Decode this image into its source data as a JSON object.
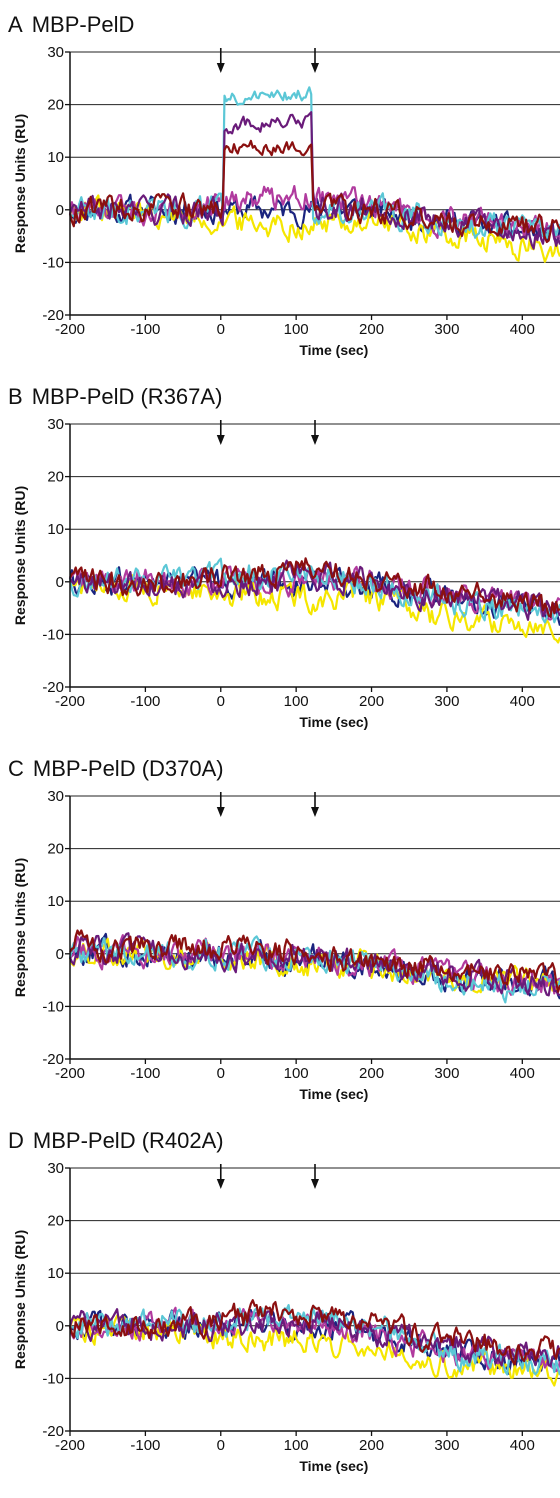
{
  "figure": {
    "panels": [
      {
        "letter": "A",
        "title": "MBP-PelD"
      },
      {
        "letter": "B",
        "title": "MBP-PelD (R367A)"
      },
      {
        "letter": "C",
        "title": "MBP-PelD (D370A)"
      },
      {
        "letter": "D",
        "title": "MBP-PelD (R402A)"
      }
    ]
  },
  "chart_data": [
    {
      "type": "line",
      "title": "MBP-PelD",
      "xlabel": "Time (sec)",
      "ylabel": "Response Units (RU)",
      "xlim": [
        -200,
        450
      ],
      "ylim": [
        -20,
        30
      ],
      "xticks": [
        -200,
        -100,
        0,
        100,
        200,
        300,
        400
      ],
      "yticks": [
        -20,
        -10,
        0,
        10,
        20,
        30
      ],
      "grid": "horizontal",
      "annotations": [
        {
          "type": "arrow",
          "x": 0
        },
        {
          "type": "arrow",
          "x": 125
        }
      ],
      "series": [
        {
          "color": "#1a237e",
          "x": [
            -200,
            -100,
            0,
            125,
            200,
            300,
            450
          ],
          "values": [
            0,
            0,
            0,
            0,
            0,
            -2,
            -5
          ]
        },
        {
          "color": "#f5e600",
          "x": [
            -200,
            -100,
            0,
            125,
            200,
            300,
            450
          ],
          "values": [
            0,
            0,
            -2,
            -3,
            -2,
            -5,
            -8
          ]
        },
        {
          "color": "#b03a9e",
          "x": [
            -200,
            -100,
            0,
            125,
            200,
            300,
            450
          ],
          "values": [
            0,
            0,
            2,
            3,
            1,
            -2,
            -4
          ]
        },
        {
          "color": "#5bc7d6",
          "x": [
            -200,
            -100,
            0,
            125,
            200,
            300,
            450
          ],
          "values": [
            0,
            0,
            21,
            22,
            0,
            -2,
            -5
          ]
        },
        {
          "color": "#6a1b7a",
          "x": [
            -200,
            -100,
            0,
            125,
            200,
            300,
            450
          ],
          "values": [
            0,
            0,
            16,
            17,
            0,
            -2,
            -5
          ]
        },
        {
          "color": "#8b1010",
          "x": [
            -200,
            -100,
            0,
            125,
            200,
            300,
            450
          ],
          "values": [
            0,
            0,
            12,
            12,
            0,
            -2,
            -4
          ]
        }
      ]
    },
    {
      "type": "line",
      "title": "MBP-PelD (R367A)",
      "xlabel": "Time (sec)",
      "ylabel": "Response Units (RU)",
      "xlim": [
        -200,
        450
      ],
      "ylim": [
        -20,
        30
      ],
      "xticks": [
        -200,
        -100,
        0,
        100,
        200,
        300,
        400
      ],
      "yticks": [
        -20,
        -10,
        0,
        10,
        20,
        30
      ],
      "grid": "horizontal",
      "annotations": [
        {
          "type": "arrow",
          "x": 0
        },
        {
          "type": "arrow",
          "x": 125
        }
      ],
      "series": [
        {
          "color": "#1a237e",
          "x": [
            -200,
            -100,
            0,
            125,
            200,
            300,
            450
          ],
          "values": [
            0,
            0,
            0,
            0,
            -1,
            -3,
            -6
          ]
        },
        {
          "color": "#f5e600",
          "x": [
            -200,
            -100,
            0,
            125,
            200,
            300,
            450
          ],
          "values": [
            0,
            -1,
            -2,
            -3,
            -3,
            -7,
            -8
          ]
        },
        {
          "color": "#b03a9e",
          "x": [
            -200,
            -100,
            0,
            125,
            200,
            300,
            450
          ],
          "values": [
            0,
            0,
            0,
            0,
            0,
            -3,
            -5
          ]
        },
        {
          "color": "#5bc7d6",
          "x": [
            -200,
            -100,
            0,
            125,
            200,
            300,
            450
          ],
          "values": [
            0,
            0,
            1,
            2,
            0,
            -4,
            -6
          ]
        },
        {
          "color": "#6a1b7a",
          "x": [
            -200,
            -100,
            0,
            125,
            200,
            300,
            450
          ],
          "values": [
            0,
            0,
            0,
            1,
            0,
            -3,
            -5
          ]
        },
        {
          "color": "#8b1010",
          "x": [
            -200,
            -100,
            0,
            125,
            200,
            300,
            450
          ],
          "values": [
            0,
            0,
            1,
            3,
            1,
            -2,
            -5
          ]
        }
      ]
    },
    {
      "type": "line",
      "title": "MBP-PelD (D370A)",
      "xlabel": "Time (sec)",
      "ylabel": "Response Units (RU)",
      "xlim": [
        -200,
        450
      ],
      "ylim": [
        -20,
        30
      ],
      "xticks": [
        -200,
        -100,
        0,
        100,
        200,
        300,
        400
      ],
      "yticks": [
        -20,
        -10,
        0,
        10,
        20,
        30
      ],
      "grid": "horizontal",
      "annotations": [
        {
          "type": "arrow",
          "x": 0
        },
        {
          "type": "arrow",
          "x": 125
        }
      ],
      "series": [
        {
          "color": "#1a237e",
          "x": [
            -200,
            -100,
            0,
            125,
            200,
            300,
            450
          ],
          "values": [
            1,
            0,
            -1,
            -1,
            -2,
            -4,
            -6
          ]
        },
        {
          "color": "#f5e600",
          "x": [
            -200,
            -100,
            0,
            125,
            200,
            300,
            450
          ],
          "values": [
            1,
            0,
            -1,
            -2,
            -2,
            -5,
            -6
          ]
        },
        {
          "color": "#b03a9e",
          "x": [
            -200,
            -100,
            0,
            125,
            200,
            300,
            450
          ],
          "values": [
            1,
            0,
            0,
            -1,
            -2,
            -4,
            -6
          ]
        },
        {
          "color": "#5bc7d6",
          "x": [
            -200,
            -100,
            0,
            125,
            200,
            300,
            450
          ],
          "values": [
            1,
            0,
            0,
            0,
            -2,
            -5,
            -7
          ]
        },
        {
          "color": "#6a1b7a",
          "x": [
            -200,
            -100,
            0,
            125,
            200,
            300,
            450
          ],
          "values": [
            1,
            0,
            0,
            -1,
            -2,
            -4,
            -6
          ]
        },
        {
          "color": "#8b1010",
          "x": [
            -200,
            -100,
            0,
            125,
            200,
            300,
            450
          ],
          "values": [
            2,
            1,
            1,
            0,
            -1,
            -3,
            -5
          ]
        }
      ]
    },
    {
      "type": "line",
      "title": "MBP-PelD (R402A)",
      "xlabel": "Time (sec)",
      "ylabel": "Response Units (RU)",
      "xlim": [
        -200,
        450
      ],
      "ylim": [
        -20,
        30
      ],
      "xticks": [
        -200,
        -100,
        0,
        100,
        200,
        300,
        400
      ],
      "yticks": [
        -20,
        -10,
        0,
        10,
        20,
        30
      ],
      "grid": "horizontal",
      "annotations": [
        {
          "type": "arrow",
          "x": 0
        },
        {
          "type": "arrow",
          "x": 125
        }
      ],
      "series": [
        {
          "color": "#1a237e",
          "x": [
            -200,
            -100,
            0,
            125,
            200,
            300,
            450
          ],
          "values": [
            0,
            0,
            0,
            0,
            -1,
            -5,
            -7
          ]
        },
        {
          "color": "#f5e600",
          "x": [
            -200,
            -100,
            0,
            125,
            200,
            300,
            450
          ],
          "values": [
            0,
            -1,
            -2,
            -3,
            -3,
            -7,
            -8
          ]
        },
        {
          "color": "#b03a9e",
          "x": [
            -200,
            -100,
            0,
            125,
            200,
            300,
            450
          ],
          "values": [
            0,
            0,
            0,
            1,
            -1,
            -5,
            -7
          ]
        },
        {
          "color": "#5bc7d6",
          "x": [
            -200,
            -100,
            0,
            125,
            200,
            300,
            450
          ],
          "values": [
            0,
            0,
            1,
            2,
            0,
            -5,
            -7
          ]
        },
        {
          "color": "#6a1b7a",
          "x": [
            -200,
            -100,
            0,
            125,
            200,
            300,
            450
          ],
          "values": [
            0,
            0,
            0,
            1,
            -1,
            -4,
            -6
          ]
        },
        {
          "color": "#8b1010",
          "x": [
            -200,
            -100,
            0,
            125,
            200,
            300,
            450
          ],
          "values": [
            0,
            0,
            1,
            3,
            0,
            -3,
            -5
          ]
        }
      ]
    }
  ]
}
